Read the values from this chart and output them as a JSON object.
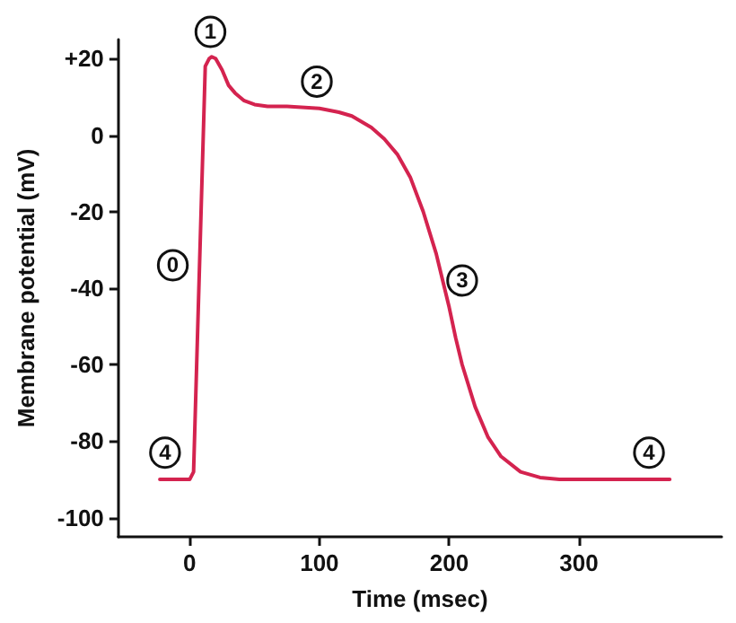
{
  "chart_data": {
    "type": "line",
    "xlabel": "Time (msec)",
    "ylabel": "Membrane potential (mV)",
    "x": [
      -23,
      0,
      3,
      12,
      15,
      17,
      20,
      25,
      30,
      35,
      42,
      50,
      60,
      75,
      100,
      115,
      125,
      140,
      150,
      160,
      170,
      180,
      190,
      195,
      200,
      205,
      210,
      220,
      230,
      240,
      255,
      270,
      285,
      300,
      370
    ],
    "series": [
      {
        "color": "#d4234f",
        "values": [
          -90,
          -90,
          -88,
          18,
          20,
          20.5,
          20,
          17,
          13,
          11,
          9,
          8,
          7.5,
          7.5,
          7,
          6,
          5,
          2,
          -1,
          -5,
          -11,
          -20,
          -31,
          -38,
          -45,
          -53,
          -60,
          -71,
          -79,
          -84,
          -88,
          -89.5,
          -90,
          -90,
          -90
        ]
      }
    ],
    "xlim": [
      -55,
      410
    ],
    "xticks": [
      0,
      100,
      200,
      300
    ],
    "ylim": [
      -105,
      25
    ],
    "yticks": [
      {
        "value": 20,
        "label": "+20"
      },
      0,
      -20,
      -40,
      -60,
      -80,
      -100
    ],
    "grid": false,
    "marker": "none",
    "line_style": "solid",
    "annotations": [
      {
        "text": "0",
        "x": -13,
        "y": -34
      },
      {
        "text": "1",
        "x": 16,
        "y": 27
      },
      {
        "text": "2",
        "x": 98,
        "y": 14
      },
      {
        "text": "3",
        "x": 210,
        "y": -38
      },
      {
        "text": "4",
        "x": -19,
        "y": -83
      },
      {
        "text": "4",
        "x": 354,
        "y": -83
      }
    ]
  }
}
